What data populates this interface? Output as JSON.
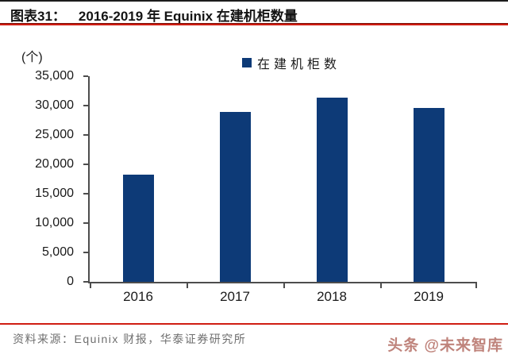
{
  "header": {
    "figure_label": "图表31：",
    "title": "2016-2019 年 Equinix 在建机柜数量"
  },
  "chart": {
    "unit_label": "(个)",
    "legend_label": "在建机柜数"
  },
  "chart_data": {
    "type": "bar",
    "title": "2016-2019 年 Equinix 在建机柜数量",
    "categories": [
      "2016",
      "2017",
      "2018",
      "2019"
    ],
    "series": [
      {
        "name": "在建机柜数",
        "values": [
          18200,
          28900,
          31400,
          29600
        ]
      }
    ],
    "xlabel": "",
    "ylabel": "(个)",
    "unit": "个",
    "ylim": [
      0,
      35000
    ],
    "ytick_step": 5000,
    "yticks": [
      "35,000",
      "30,000",
      "25,000",
      "20,000",
      "15,000",
      "10,000",
      "5,000",
      "0"
    ],
    "grid": false,
    "legend_position": "top-center",
    "bar_color": "#0d3a77"
  },
  "footer": {
    "source": "资料来源：Equinix 财报，华泰证券研究所",
    "watermark": "头条 @未来智库"
  },
  "colors": {
    "bar": "#0d3a77",
    "accent_red": "#cf1d12",
    "axis": "#4d4d4d",
    "source_text": "#6f6f6f",
    "watermark": "#bf837b"
  }
}
